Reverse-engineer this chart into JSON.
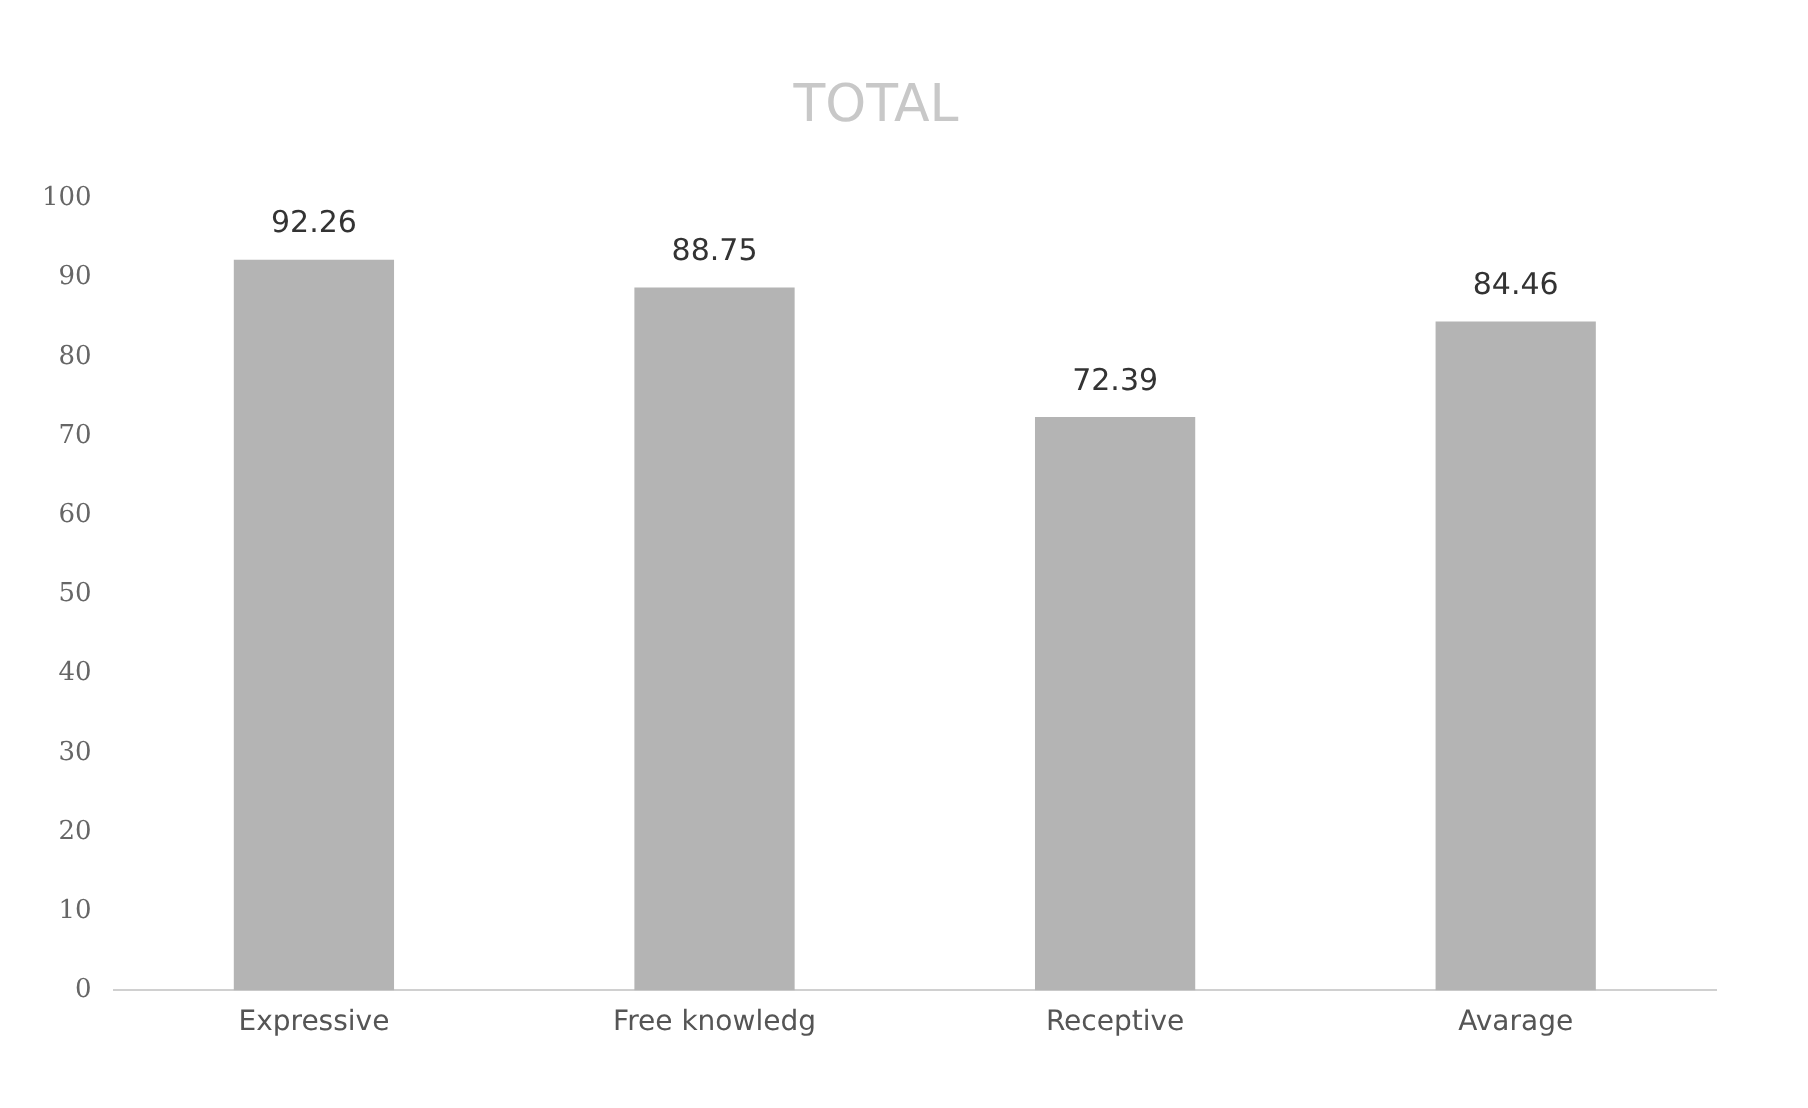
{
  "chart_data": {
    "type": "bar",
    "title": "TOTAL",
    "categories": [
      "Expressive",
      "Free knowledg",
      "Receptive",
      "Avarage"
    ],
    "values": [
      92.26,
      88.75,
      72.39,
      84.46
    ],
    "color": "#b4b4b4",
    "ylim": [
      0,
      100
    ],
    "yticks": [
      0,
      10,
      20,
      30,
      40,
      50,
      60,
      70,
      80,
      90,
      100
    ],
    "grid": false,
    "legend": false,
    "data_labels": true
  }
}
